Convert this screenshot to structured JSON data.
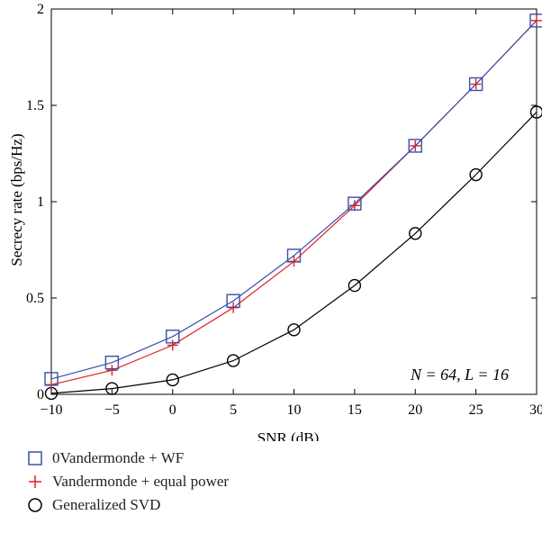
{
  "chart_data": {
    "type": "line",
    "xlabel": "SNR (dB)",
    "ylabel": "Secrecy rate (bps/Hz)",
    "xlim": [
      -10,
      30
    ],
    "ylim": [
      0,
      2
    ],
    "xticks": [
      -10,
      -5,
      0,
      5,
      10,
      15,
      20,
      25,
      30
    ],
    "yticks": [
      0,
      0.5,
      1,
      1.5,
      2
    ],
    "xtick_labels": [
      "−10",
      "−5",
      "0",
      "5",
      "10",
      "15",
      "20",
      "25",
      "30"
    ],
    "ytick_labels": [
      "0",
      "0.5",
      "1",
      "1.5",
      "2"
    ],
    "x": [
      -10,
      -5,
      0,
      5,
      10,
      15,
      20,
      25,
      30
    ],
    "annotation": "N = 64, L = 16",
    "legend_placement": "below",
    "grid": false,
    "series": [
      {
        "name": "0Vandermonde + WF",
        "marker": "square",
        "color": "#3a4fa8",
        "values": [
          0.08,
          0.165,
          0.3,
          0.485,
          0.72,
          0.99,
          1.29,
          1.61,
          1.94
        ]
      },
      {
        "name": "Vandermonde + equal power",
        "marker": "plus",
        "color": "#e02020",
        "values": [
          0.05,
          0.125,
          0.255,
          0.45,
          0.69,
          0.98,
          1.29,
          1.61,
          1.94
        ]
      },
      {
        "name": "Generalized SVD",
        "marker": "circle",
        "color": "#000000",
        "values": [
          0.005,
          0.03,
          0.075,
          0.175,
          0.335,
          0.565,
          0.835,
          1.14,
          1.465
        ]
      }
    ]
  }
}
